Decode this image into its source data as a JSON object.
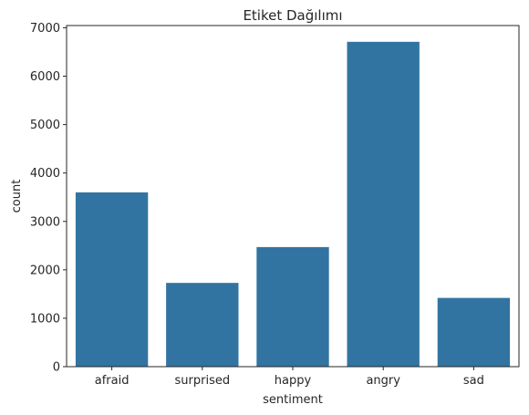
{
  "chart_data": {
    "type": "bar",
    "title": "Etiket Dağılımı",
    "xlabel": "sentiment",
    "ylabel": "count",
    "categories": [
      "afraid",
      "surprised",
      "happy",
      "angry",
      "sad"
    ],
    "values": [
      3600,
      1730,
      2470,
      6710,
      1420
    ],
    "ylim": [
      0,
      7046
    ],
    "yticks": [
      0,
      1000,
      2000,
      3000,
      4000,
      5000,
      6000,
      7000
    ],
    "bar_color": "#3274a1",
    "grid": false,
    "legend": "none"
  }
}
